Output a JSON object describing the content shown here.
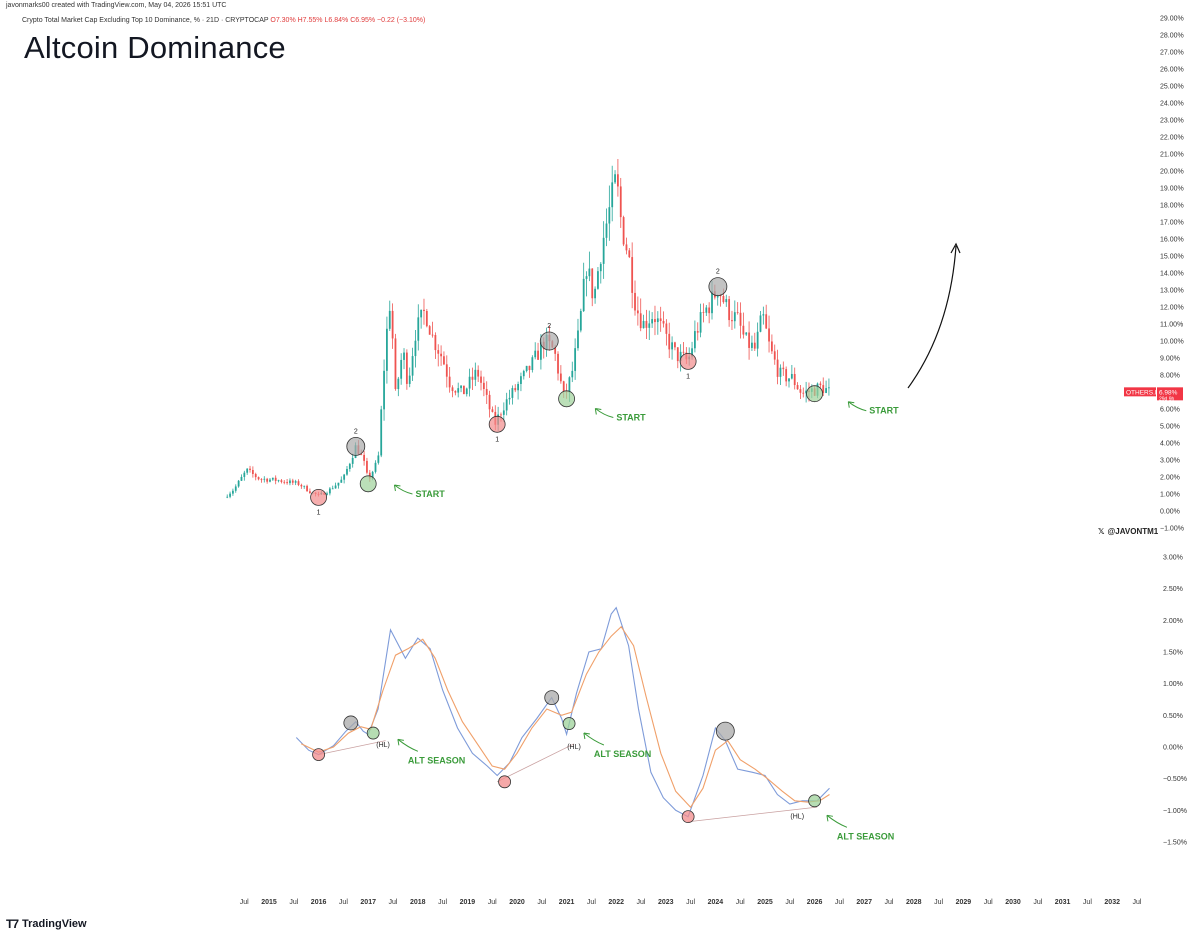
{
  "header": {
    "creator": "javonmarks00 created with TradingView.com, May 04, 2026 15:51 UTC",
    "symbol": "Crypto Total Market Cap Excluding Top 10 Dominance, % · 21D · CRYPTOCAP",
    "ohlc": {
      "o": "O7.30%",
      "h": "H7.55%",
      "l": "L6.84%",
      "c": "C6.95%",
      "chg": "−0.22 (−3.10%)"
    },
    "title": "Altcoin Dominance"
  },
  "watermark": "@JAVONTM1",
  "logo": "TradingView",
  "price_tag": {
    "symbol": "OTHERS.D",
    "value": "6.98%",
    "countdown": "29d 9h"
  },
  "colors": {
    "up": "#26a69a",
    "down": "#ef5350",
    "oscillator_fast": "#7e9bd9",
    "oscillator_slow": "#f0a06a",
    "annotation_green": "#3a9b3a",
    "marker_red": "#f28b8b",
    "marker_green": "#9ed29a",
    "marker_gray": "#aaaaaa"
  },
  "chart_data": [
    {
      "type": "candlestick",
      "title": "Altcoin Dominance",
      "y_unit": "%",
      "ylim": [
        -1,
        29
      ],
      "y_ticks": [
        "29.00%",
        "28.00%",
        "27.00%",
        "26.00%",
        "25.00%",
        "24.00%",
        "23.00%",
        "22.00%",
        "21.00%",
        "20.00%",
        "19.00%",
        "18.00%",
        "17.00%",
        "16.00%",
        "15.00%",
        "14.00%",
        "13.00%",
        "12.00%",
        "11.00%",
        "10.00%",
        "9.00%",
        "8.00%",
        "7.00%",
        "6.00%",
        "5.00%",
        "4.00%",
        "3.00%",
        "2.00%",
        "1.00%",
        "0.00%",
        "−1.00%"
      ],
      "x_ticks": [
        {
          "t": 2014.5,
          "label": "Jul"
        },
        {
          "t": 2015.0,
          "label": "2015"
        },
        {
          "t": 2015.5,
          "label": "Jul"
        },
        {
          "t": 2016.0,
          "label": "2016"
        },
        {
          "t": 2016.5,
          "label": "Jul"
        },
        {
          "t": 2017.0,
          "label": "2017"
        },
        {
          "t": 2017.5,
          "label": "Jul"
        },
        {
          "t": 2018.0,
          "label": "2018"
        },
        {
          "t": 2018.5,
          "label": "Jul"
        },
        {
          "t": 2019.0,
          "label": "2019"
        },
        {
          "t": 2019.5,
          "label": "Jul"
        },
        {
          "t": 2020.0,
          "label": "2020"
        },
        {
          "t": 2020.5,
          "label": "Jul"
        },
        {
          "t": 2021.0,
          "label": "2021"
        },
        {
          "t": 2021.5,
          "label": "Jul"
        },
        {
          "t": 2022.0,
          "label": "2022"
        },
        {
          "t": 2022.5,
          "label": "Jul"
        },
        {
          "t": 2023.0,
          "label": "2023"
        },
        {
          "t": 2023.5,
          "label": "Jul"
        },
        {
          "t": 2024.0,
          "label": "2024"
        },
        {
          "t": 2024.5,
          "label": "Jul"
        },
        {
          "t": 2025.0,
          "label": "2025"
        },
        {
          "t": 2025.5,
          "label": "Jul"
        },
        {
          "t": 2026.0,
          "label": "2026"
        },
        {
          "t": 2026.5,
          "label": "Jul"
        },
        {
          "t": 2027.0,
          "label": "2027"
        },
        {
          "t": 2027.5,
          "label": "Jul"
        },
        {
          "t": 2028.0,
          "label": "2028"
        },
        {
          "t": 2028.5,
          "label": "Jul"
        },
        {
          "t": 2029.0,
          "label": "2029"
        },
        {
          "t": 2029.5,
          "label": "Jul"
        },
        {
          "t": 2030.0,
          "label": "2030"
        },
        {
          "t": 2030.5,
          "label": "Jul"
        },
        {
          "t": 2031.0,
          "label": "2031"
        },
        {
          "t": 2031.5,
          "label": "Jul"
        },
        {
          "t": 2032.0,
          "label": "2032"
        },
        {
          "t": 2032.5,
          "label": "Jul"
        }
      ],
      "path": [
        [
          2014.1,
          0.8
        ],
        [
          2014.3,
          1.3
        ],
        [
          2014.55,
          2.4
        ],
        [
          2014.8,
          1.9
        ],
        [
          2015.2,
          1.8
        ],
        [
          2015.6,
          1.6
        ],
        [
          2015.85,
          1.1
        ],
        [
          2016.0,
          0.9
        ],
        [
          2016.2,
          1.2
        ],
        [
          2016.5,
          1.9
        ],
        [
          2016.75,
          3.8
        ],
        [
          2016.9,
          3.0
        ],
        [
          2017.0,
          1.8
        ],
        [
          2017.2,
          3.0
        ],
        [
          2017.35,
          9.8
        ],
        [
          2017.45,
          12.6
        ],
        [
          2017.55,
          6.8
        ],
        [
          2017.7,
          9.5
        ],
        [
          2017.8,
          7.5
        ],
        [
          2017.95,
          10.5
        ],
        [
          2018.15,
          11.8
        ],
        [
          2018.3,
          10.2
        ],
        [
          2018.5,
          9.0
        ],
        [
          2018.65,
          7.5
        ],
        [
          2018.9,
          6.9
        ],
        [
          2019.2,
          8.2
        ],
        [
          2019.45,
          6.0
        ],
        [
          2019.55,
          5.1
        ],
        [
          2019.75,
          6.3
        ],
        [
          2020.0,
          7.3
        ],
        [
          2020.3,
          8.6
        ],
        [
          2020.55,
          10.0
        ],
        [
          2020.75,
          9.4
        ],
        [
          2020.95,
          6.6
        ],
        [
          2021.1,
          8.0
        ],
        [
          2021.25,
          10.5
        ],
        [
          2021.4,
          14.5
        ],
        [
          2021.55,
          12.5
        ],
        [
          2021.7,
          15.5
        ],
        [
          2021.85,
          17.5
        ],
        [
          2022.0,
          19.5
        ],
        [
          2022.1,
          17.0
        ],
        [
          2022.25,
          15.0
        ],
        [
          2022.4,
          12.0
        ],
        [
          2022.55,
          11.0
        ],
        [
          2022.75,
          11.6
        ],
        [
          2022.95,
          10.5
        ],
        [
          2023.2,
          9.2
        ],
        [
          2023.45,
          8.8
        ],
        [
          2023.6,
          10.5
        ],
        [
          2023.8,
          11.8
        ],
        [
          2023.95,
          12.5
        ],
        [
          2024.05,
          13.2
        ],
        [
          2024.25,
          11.8
        ],
        [
          2024.45,
          11.2
        ],
        [
          2024.6,
          10.0
        ],
        [
          2024.8,
          9.5
        ],
        [
          2024.95,
          11.5
        ],
        [
          2025.1,
          9.5
        ],
        [
          2025.3,
          8.0
        ],
        [
          2025.55,
          7.8
        ],
        [
          2025.75,
          6.9
        ],
        [
          2025.95,
          7.1
        ],
        [
          2026.15,
          7.3
        ],
        [
          2026.3,
          6.98
        ]
      ],
      "markers": [
        {
          "t": 2016.0,
          "v": 0.8,
          "color": "red",
          "label": "1"
        },
        {
          "t": 2016.75,
          "v": 3.8,
          "color": "gray",
          "label": "2"
        },
        {
          "t": 2017.0,
          "v": 1.6,
          "color": "green",
          "label": ""
        },
        {
          "t": 2019.6,
          "v": 5.1,
          "color": "red",
          "label": "1"
        },
        {
          "t": 2020.65,
          "v": 10.0,
          "color": "gray",
          "label": "2"
        },
        {
          "t": 2021.0,
          "v": 6.6,
          "color": "green",
          "label": ""
        },
        {
          "t": 2023.45,
          "v": 8.8,
          "color": "red",
          "label": "1"
        },
        {
          "t": 2024.05,
          "v": 13.2,
          "color": "gray",
          "label": "2"
        },
        {
          "t": 2026.0,
          "v": 6.9,
          "color": "green",
          "label": ""
        }
      ],
      "annotations": [
        {
          "text": "START",
          "t": 2017.65,
          "v": 1.0
        },
        {
          "text": "START",
          "t": 2021.7,
          "v": 5.5
        },
        {
          "text": "START",
          "t": 2026.8,
          "v": 5.9
        }
      ]
    },
    {
      "type": "line",
      "ylim": [
        -1.75,
        3.25
      ],
      "y_ticks": [
        "3.00%",
        "2.50%",
        "2.00%",
        "1.50%",
        "1.00%",
        "0.50%",
        "0.00%",
        "−0.50%",
        "−1.00%",
        "−1.50%"
      ],
      "series": [
        {
          "color": "fast",
          "points": [
            [
              2015.55,
              0.15
            ],
            [
              2015.8,
              -0.05
            ],
            [
              2016.0,
              -0.12
            ],
            [
              2016.3,
              0.02
            ],
            [
              2016.55,
              0.25
            ],
            [
              2016.75,
              0.4
            ],
            [
              2016.9,
              0.25
            ],
            [
              2017.0,
              0.2
            ],
            [
              2017.2,
              0.6
            ],
            [
              2017.45,
              1.85
            ],
            [
              2017.75,
              1.4
            ],
            [
              2018.0,
              1.72
            ],
            [
              2018.25,
              1.55
            ],
            [
              2018.5,
              0.9
            ],
            [
              2018.8,
              0.3
            ],
            [
              2019.1,
              -0.1
            ],
            [
              2019.4,
              -0.3
            ],
            [
              2019.6,
              -0.45
            ],
            [
              2019.85,
              -0.25
            ],
            [
              2020.1,
              0.15
            ],
            [
              2020.4,
              0.45
            ],
            [
              2020.7,
              0.78
            ],
            [
              2020.9,
              0.45
            ],
            [
              2021.0,
              0.2
            ],
            [
              2021.2,
              0.85
            ],
            [
              2021.45,
              1.5
            ],
            [
              2021.7,
              1.55
            ],
            [
              2021.9,
              2.1
            ],
            [
              2022.0,
              2.2
            ],
            [
              2022.25,
              1.6
            ],
            [
              2022.45,
              0.6
            ],
            [
              2022.7,
              -0.4
            ],
            [
              2022.95,
              -0.8
            ],
            [
              2023.2,
              -1.0
            ],
            [
              2023.45,
              -1.1
            ],
            [
              2023.75,
              -0.45
            ],
            [
              2024.0,
              0.3
            ],
            [
              2024.2,
              0.1
            ],
            [
              2024.45,
              -0.35
            ],
            [
              2024.75,
              -0.4
            ],
            [
              2025.0,
              -0.45
            ],
            [
              2025.25,
              -0.75
            ],
            [
              2025.5,
              -0.9
            ],
            [
              2025.75,
              -0.85
            ],
            [
              2026.05,
              -0.85
            ],
            [
              2026.3,
              -0.65
            ]
          ]
        },
        {
          "color": "slow",
          "points": [
            [
              2015.65,
              0.05
            ],
            [
              2016.0,
              -0.08
            ],
            [
              2016.3,
              0.0
            ],
            [
              2016.6,
              0.22
            ],
            [
              2016.85,
              0.32
            ],
            [
              2017.05,
              0.28
            ],
            [
              2017.3,
              0.9
            ],
            [
              2017.55,
              1.45
            ],
            [
              2017.8,
              1.55
            ],
            [
              2018.1,
              1.7
            ],
            [
              2018.35,
              1.4
            ],
            [
              2018.6,
              0.9
            ],
            [
              2018.9,
              0.4
            ],
            [
              2019.2,
              0.05
            ],
            [
              2019.5,
              -0.3
            ],
            [
              2019.75,
              -0.35
            ],
            [
              2020.0,
              -0.1
            ],
            [
              2020.3,
              0.3
            ],
            [
              2020.6,
              0.6
            ],
            [
              2020.9,
              0.5
            ],
            [
              2021.1,
              0.55
            ],
            [
              2021.4,
              1.15
            ],
            [
              2021.65,
              1.5
            ],
            [
              2021.9,
              1.75
            ],
            [
              2022.1,
              1.9
            ],
            [
              2022.35,
              1.6
            ],
            [
              2022.6,
              0.8
            ],
            [
              2022.9,
              -0.1
            ],
            [
              2023.2,
              -0.7
            ],
            [
              2023.5,
              -0.95
            ],
            [
              2023.75,
              -0.65
            ],
            [
              2024.0,
              -0.05
            ],
            [
              2024.25,
              0.1
            ],
            [
              2024.5,
              -0.2
            ],
            [
              2024.8,
              -0.35
            ],
            [
              2025.05,
              -0.5
            ],
            [
              2025.35,
              -0.7
            ],
            [
              2025.6,
              -0.85
            ],
            [
              2025.85,
              -0.87
            ],
            [
              2026.1,
              -0.85
            ],
            [
              2026.3,
              -0.75
            ]
          ]
        }
      ],
      "trendlines": [
        {
          "from": [
            2016.0,
            -0.12
          ],
          "to": [
            2017.35,
            0.1
          ]
        },
        {
          "from": [
            2019.6,
            -0.55
          ],
          "to": [
            2021.15,
            0.05
          ]
        },
        {
          "from": [
            2023.45,
            -1.18
          ],
          "to": [
            2026.05,
            -0.95
          ]
        }
      ],
      "markers": [
        {
          "t": 2016.0,
          "v": -0.12,
          "color": "red"
        },
        {
          "t": 2016.65,
          "v": 0.38,
          "color": "gray"
        },
        {
          "t": 2017.1,
          "v": 0.22,
          "color": "green"
        },
        {
          "t": 2019.75,
          "v": -0.55,
          "color": "red"
        },
        {
          "t": 2020.7,
          "v": 0.78,
          "color": "gray"
        },
        {
          "t": 2021.05,
          "v": 0.37,
          "color": "green"
        },
        {
          "t": 2023.45,
          "v": -1.1,
          "color": "red"
        },
        {
          "t": 2024.2,
          "v": 0.25,
          "color": "gray"
        },
        {
          "t": 2026.0,
          "v": -0.85,
          "color": "green"
        }
      ],
      "annotations": [
        {
          "text": "ALT SEASON",
          "t": 2017.8,
          "v": -0.1,
          "kind": "green"
        },
        {
          "text": "ALT SEASON",
          "t": 2021.55,
          "v": 0.0,
          "kind": "green"
        },
        {
          "text": "ALT SEASON",
          "t": 2026.45,
          "v": -1.3,
          "kind": "green"
        },
        {
          "text": "(HL)",
          "t": 2017.3,
          "v": 0.0,
          "kind": "small"
        },
        {
          "text": "(HL)",
          "t": 2021.15,
          "v": -0.03,
          "kind": "small"
        },
        {
          "text": "(HL)",
          "t": 2025.65,
          "v": -1.13,
          "kind": "small"
        }
      ]
    }
  ]
}
